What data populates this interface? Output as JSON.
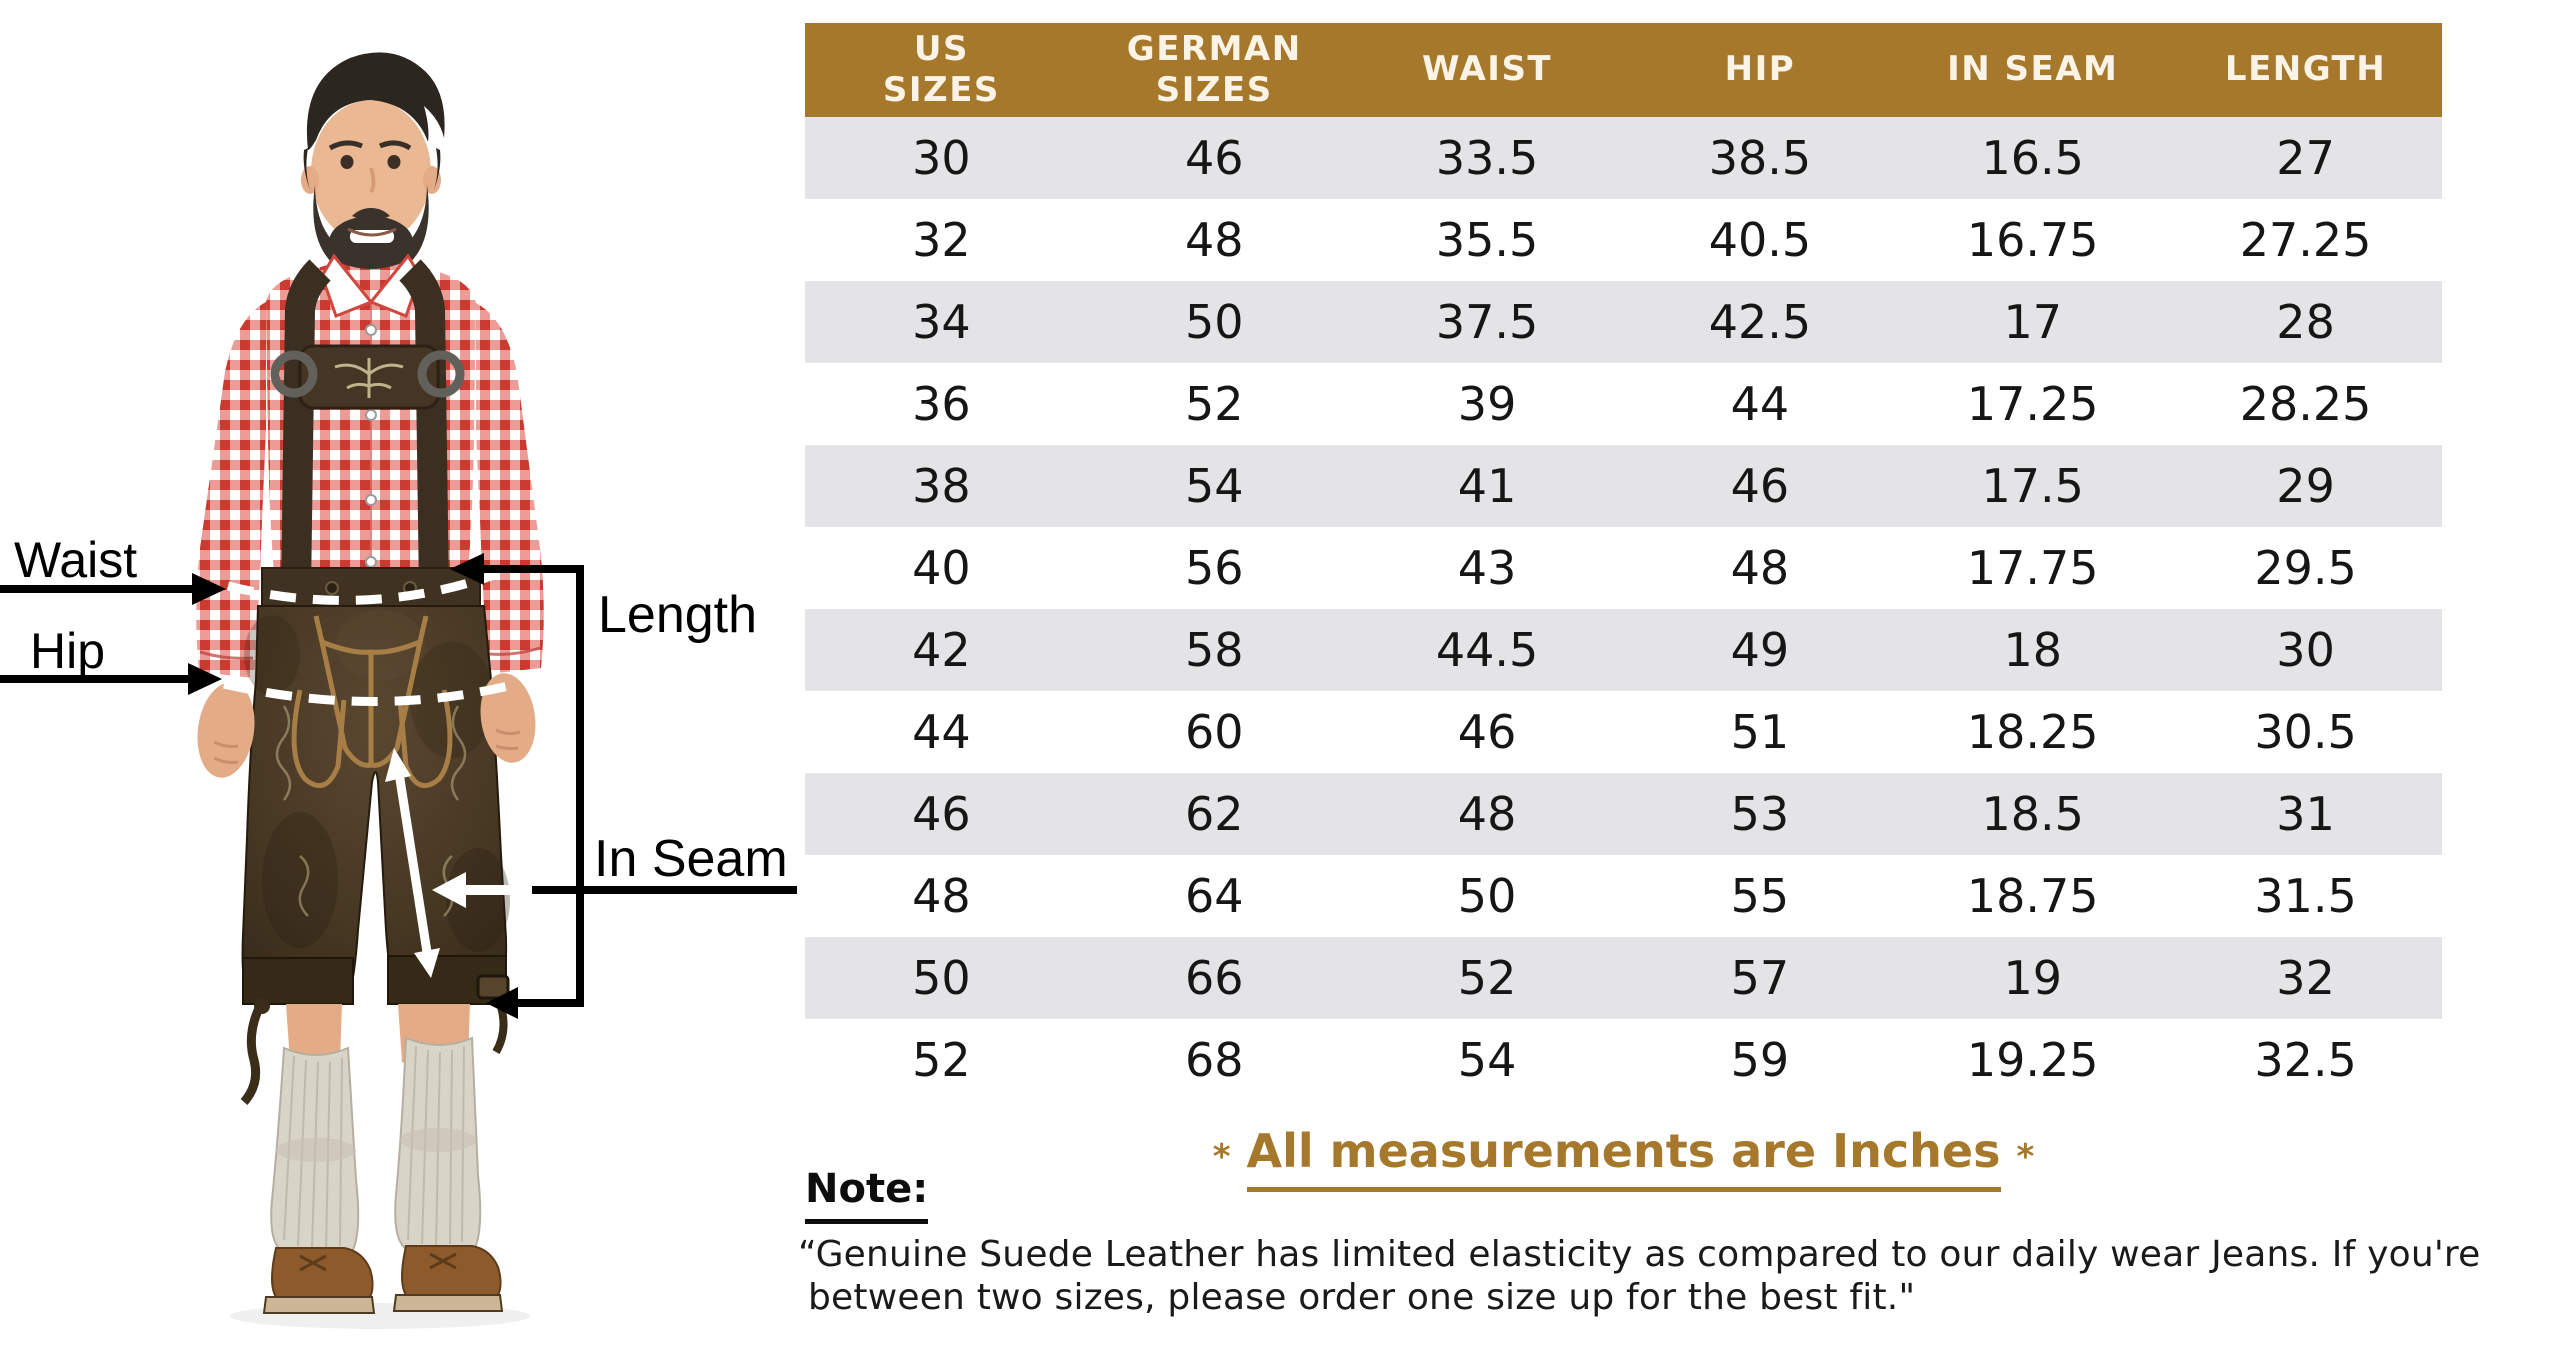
{
  "diagram": {
    "waist_label": "Waist",
    "hip_label": "Hip",
    "length_label": "Length",
    "inseam_label": "In Seam"
  },
  "table": {
    "headers": [
      [
        "US",
        "SIZES"
      ],
      [
        "GERMAN",
        "SIZES"
      ],
      [
        "WAIST"
      ],
      [
        "HIP"
      ],
      [
        "IN SEAM"
      ],
      [
        "LENGTH"
      ]
    ],
    "rows": [
      [
        "30",
        "46",
        "33.5",
        "38.5",
        "16.5",
        "27"
      ],
      [
        "32",
        "48",
        "35.5",
        "40.5",
        "16.75",
        "27.25"
      ],
      [
        "34",
        "50",
        "37.5",
        "42.5",
        "17",
        "28"
      ],
      [
        "36",
        "52",
        "39",
        "44",
        "17.25",
        "28.25"
      ],
      [
        "38",
        "54",
        "41",
        "46",
        "17.5",
        "29"
      ],
      [
        "40",
        "56",
        "43",
        "48",
        "17.75",
        "29.5"
      ],
      [
        "42",
        "58",
        "44.5",
        "49",
        "18",
        "30"
      ],
      [
        "44",
        "60",
        "46",
        "51",
        "18.25",
        "30.5"
      ],
      [
        "46",
        "62",
        "48",
        "53",
        "18.5",
        "31"
      ],
      [
        "48",
        "64",
        "50",
        "55",
        "18.75",
        "31.5"
      ],
      [
        "50",
        "66",
        "52",
        "57",
        "19",
        "32"
      ],
      [
        "52",
        "68",
        "54",
        "59",
        "19.25",
        "32.5"
      ]
    ]
  },
  "footer": {
    "asterisk": "*",
    "measurements_note": "All measurements are Inches",
    "note_label": "Note:",
    "note_lines": [
      "“Genuine Suede Leather has limited elasticity as compared to our daily wear Jeans. If you're",
      "between two sizes, please order one size up for the best fit.\""
    ]
  },
  "colors": {
    "header_bg": "#a5782b",
    "header_text": "#faf3e6",
    "row_alt": "#e4e4e7",
    "row_text": "#161616",
    "accent": "#a5782b"
  }
}
